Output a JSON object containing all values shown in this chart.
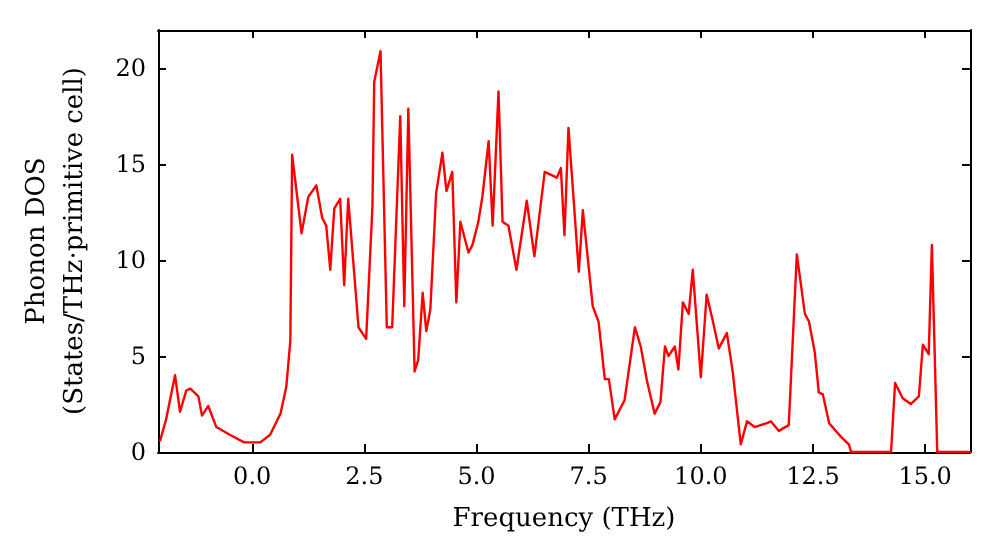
{
  "chart_data": {
    "type": "line",
    "xlabel": "Frequency (THz)",
    "ylabel": "Phonon DOS\n(States/THz·primitive cell)",
    "x": [
      -2.05,
      -1.92,
      -1.72,
      -1.61,
      -1.47,
      -1.38,
      -1.2,
      -1.12,
      -0.98,
      -0.8,
      -0.5,
      -0.18,
      0.18,
      0.4,
      0.63,
      0.76,
      0.85,
      0.89,
      1.1,
      1.25,
      1.43,
      1.56,
      1.65,
      1.74,
      1.83,
      1.96,
      2.05,
      2.14,
      2.37,
      2.54,
      2.68,
      2.72,
      2.86,
      3.0,
      3.12,
      3.3,
      3.39,
      3.48,
      3.62,
      3.7,
      3.8,
      3.88,
      3.97,
      4.1,
      4.24,
      4.33,
      4.46,
      4.55,
      4.64,
      4.82,
      4.91,
      5.04,
      5.13,
      5.27,
      5.36,
      5.49,
      5.58,
      5.71,
      5.89,
      6.12,
      6.29,
      6.52,
      6.79,
      6.88,
      6.96,
      7.05,
      7.28,
      7.37,
      7.59,
      7.72,
      7.86,
      7.95,
      8.08,
      8.3,
      8.53,
      8.66,
      8.8,
      8.97,
      9.1,
      9.2,
      9.28,
      9.42,
      9.5,
      9.6,
      9.73,
      9.82,
      10.0,
      10.13,
      10.27,
      10.4,
      10.58,
      10.71,
      10.89,
      11.03,
      11.2,
      11.47,
      11.56,
      11.74,
      11.96,
      12.14,
      12.32,
      12.41,
      12.54,
      12.63,
      12.72,
      12.86,
      13.12,
      13.3,
      13.35,
      14.24,
      14.33,
      14.5,
      14.68,
      14.86,
      14.95,
      15.08,
      15.15,
      15.27,
      16.0
    ],
    "series": [
      {
        "color": "#ff0000",
        "values": [
          0.6,
          1.7,
          4.0,
          2.1,
          3.2,
          3.3,
          2.9,
          1.9,
          2.4,
          1.3,
          0.9,
          0.5,
          0.5,
          0.9,
          2.0,
          3.4,
          5.8,
          15.5,
          11.4,
          13.3,
          13.9,
          12.2,
          11.8,
          9.5,
          12.7,
          13.2,
          8.7,
          13.2,
          6.5,
          5.9,
          12.8,
          19.3,
          20.9,
          6.5,
          6.5,
          17.5,
          7.6,
          17.9,
          4.2,
          4.8,
          8.3,
          6.3,
          7.4,
          13.5,
          15.6,
          13.6,
          14.6,
          7.8,
          12.0,
          10.4,
          10.8,
          12.0,
          13.3,
          16.2,
          11.8,
          18.8,
          12.0,
          11.8,
          9.5,
          13.1,
          10.2,
          14.6,
          14.3,
          14.8,
          11.3,
          16.9,
          9.4,
          12.6,
          7.6,
          6.8,
          3.8,
          3.8,
          1.7,
          2.7,
          6.5,
          5.5,
          3.7,
          2.0,
          2.6,
          5.5,
          5.0,
          5.5,
          4.3,
          7.8,
          7.2,
          9.5,
          3.9,
          8.2,
          6.8,
          5.4,
          6.2,
          4.2,
          0.4,
          1.6,
          1.3,
          1.5,
          1.6,
          1.1,
          1.4,
          10.3,
          7.2,
          6.8,
          5.2,
          3.1,
          3.0,
          1.5,
          0.8,
          0.4,
          0.0,
          0.0,
          3.6,
          2.8,
          2.5,
          2.9,
          5.6,
          5.1,
          10.8,
          0.0,
          0.0
        ]
      }
    ],
    "xlim": [
      -2.1,
      16.0
    ],
    "ylim": [
      0,
      22
    ],
    "xticks": [
      {
        "value": 0,
        "label": "0.0"
      },
      {
        "value": 2.5,
        "label": "2.5"
      },
      {
        "value": 5,
        "label": "5.0"
      },
      {
        "value": 7.5,
        "label": "7.5"
      },
      {
        "value": 10,
        "label": "10.0"
      },
      {
        "value": 12.5,
        "label": "12.5"
      },
      {
        "value": 15,
        "label": "15.0"
      }
    ],
    "yticks": [
      0,
      5,
      10,
      15,
      20
    ],
    "grid": false,
    "marker": "none",
    "line_style": "solid"
  }
}
